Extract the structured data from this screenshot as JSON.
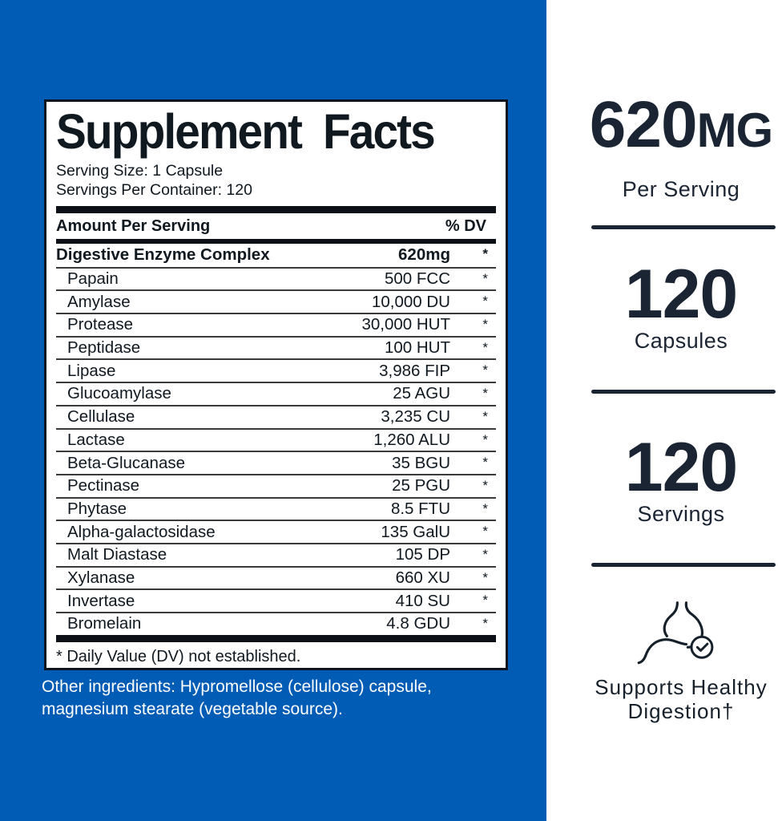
{
  "left_panel": {
    "background_color": "#005CB4",
    "supplement_facts": {
      "title": "Supplement Facts",
      "serving_size": "Serving Size: 1 Capsule",
      "servings_per_container": "Servings Per Container: 120",
      "header": {
        "amount_per_serving": "Amount Per Serving",
        "dv": "% DV"
      },
      "rows": [
        {
          "name": "Digestive Enzyme Complex",
          "amount": "620mg",
          "dv": "*",
          "bold": true
        },
        {
          "name": "Papain",
          "amount": "500 FCC",
          "dv": "*"
        },
        {
          "name": "Amylase",
          "amount": "10,000 DU",
          "dv": "*"
        },
        {
          "name": "Protease",
          "amount": "30,000 HUT",
          "dv": "*"
        },
        {
          "name": "Peptidase",
          "amount": "100 HUT",
          "dv": "*"
        },
        {
          "name": "Lipase",
          "amount": "3,986 FIP",
          "dv": "*"
        },
        {
          "name": "Glucoamylase",
          "amount": "25 AGU",
          "dv": "*"
        },
        {
          "name": "Cellulase",
          "amount": "3,235 CU",
          "dv": "*"
        },
        {
          "name": "Lactase",
          "amount": "1,260 ALU",
          "dv": "*"
        },
        {
          "name": "Beta-Glucanase",
          "amount": "35 BGU",
          "dv": "*"
        },
        {
          "name": "Pectinase",
          "amount": "25 PGU",
          "dv": "*"
        },
        {
          "name": "Phytase",
          "amount": "8.5 FTU",
          "dv": "*"
        },
        {
          "name": "Alpha-galactosidase",
          "amount": "135 GalU",
          "dv": "*"
        },
        {
          "name": "Malt Diastase",
          "amount": "105 DP",
          "dv": "*"
        },
        {
          "name": "Xylanase",
          "amount": "660 XU",
          "dv": "*"
        },
        {
          "name": "Invertase",
          "amount": "410 SU",
          "dv": "*"
        },
        {
          "name": "Bromelain",
          "amount": "4.8 GDU",
          "dv": "*"
        }
      ],
      "footnote": "* Daily Value (DV) not established."
    },
    "other_ingredients": "Other ingredients: Hypromellose (cellulose) capsule, magnesium stearate (vegetable source)."
  },
  "right_panel": {
    "accent_color": "#1B2433",
    "stats": [
      {
        "value": "620",
        "unit": "MG",
        "label": "Per Serving"
      },
      {
        "value": "120",
        "label": "Capsules"
      },
      {
        "value": "120",
        "label": "Servings"
      }
    ],
    "benefit": {
      "line1": "Supports Healthy",
      "line2": "Digestion†",
      "icon": "stomach-check-icon"
    }
  }
}
